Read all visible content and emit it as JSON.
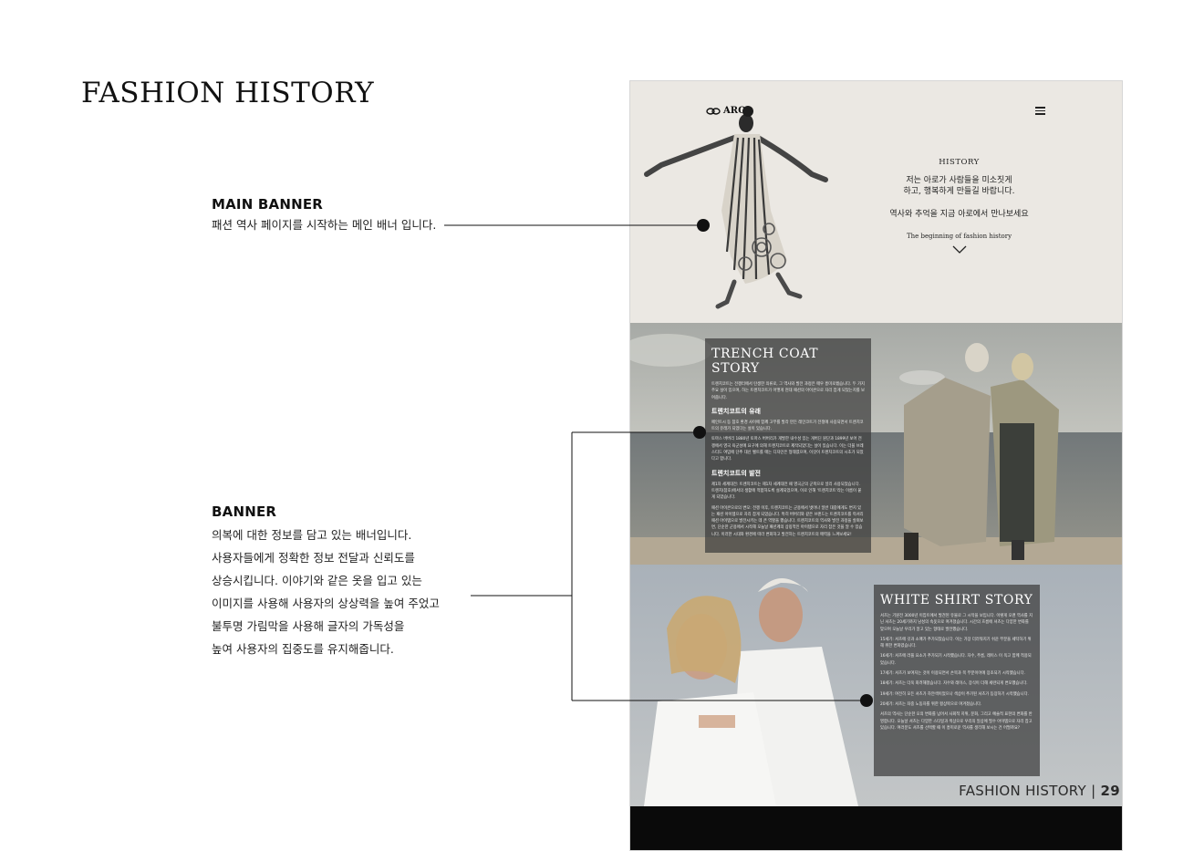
{
  "page": {
    "title": "FASHION HISTORY"
  },
  "annotations": {
    "main_banner": {
      "heading": "MAIN BANNER",
      "desc": "패션 역사 페이지를 시작하는 메인 배너 입니다."
    },
    "banner": {
      "heading": "BANNER",
      "lines": [
        "의복에 대한 정보를 담고 있는 배너입니다.",
        "사용자들에게 정확한 정보 전달과 신뢰도를",
        "상승시킵니다. 이야기와 같은 옷을 입고 있는",
        "이미지를 사용해 사용자의 상상력을 높여 주었고",
        "불투명 가림막을 사용해 글자의 가독성을",
        "높여 사용자의 집중도를 유지해줍니다."
      ]
    }
  },
  "mockup": {
    "logo": "ARO",
    "hero": {
      "label": "HISTORY",
      "line1": "저는 아로가 사람들을 미소짓게",
      "line2": "하고, 행복하게 만들길 바랍니다.",
      "sub": "역사와 추억을 지금 아로에서 만나보세요",
      "small": "The beginning of fashion history"
    },
    "trench": {
      "title": "TRENCH COAT STORY",
      "intro": "트렌치코트는 전쟁터에서 탄생한 의류로, 그 역사와 발전 과정은 매우 흥미로웠습니다. 두 가지 주요 설이 있으며, 하는 트렌치코트가 어떻게 현대 패션의 아이콘으로 자리 잡게 되었는지를 보여줍니다.",
      "sub1": "트렌치코트의 유래",
      "p1": "페인트시 등 참호 환경 사이에 함께 고무를 발라 만든 레인코트가 전쟁에 사용되면서 트렌치코트의 유래가 되었다는 설이 있습니다.",
      "p2": "토마스 버버리 1880년 토마스 버버리가 개발한 내수성 있는 개버딘 원단과 1899년 보어 전쟁에서 영국 육군성에 요구에 의해 트렌치코트로 제작되었다는 설이 있습니다. 이는 더블 브레스티드 여밈에 단추 대신 벨트를 매는 디자인은 형태였으며, 이것이 트렌치코트의 시초가 되었다고 합니다.",
      "sub2": "트렌치코트의 발전",
      "p3": "제1차 세계대전: 트렌치코트는 제1차 세계대전 때 영국군의 군복으로 널리 사용되었습니다. 트렌치(참호)에서의 생활에 적합하도록 설계되었으며, 이로 인해 '트렌치코트'라는 이름이 붙게 되었습니다.",
      "p4": "패션 아이콘으로의 변모: 전쟁 이후, 트렌치코트는 군용에서 벗어나 일반 대중에게도 변지 있는 패션 아이템으로 자리 잡게 되었습니다. 특히 버버리와 같은 브랜드는 트렌치코트를 럭셔리 패션 아이템으로 발전시키는 데 큰 역할을 했습니다. 트렌치코트의 역사와 발전 과정을 살펴보면, 단순한 군용에서 시작해 오늘날 패션계의 상징적인 아이템으로 자리 잡은 것을 알 수 있습니다. 이러한 시대와 환경에 따라 변화하고 발전하는 트렌치코트의 매력을 느껴보세요!"
    },
    "shirt": {
      "title": "WHITE SHIRT STORY",
      "p1": "셔츠는 기원전 3000년 이집트에서 발견된 유물로 그 시작을 보입니다. 이렇게 오랜 역사를 지닌 셔츠는 20세기까지 남성의 속옷으로 여겨졌습니다. 시간의 흐름에 셔츠는 다양한 변화를 맞으며 오늘날 우리가 알고 있는 형태로 발전했습니다.",
      "p2": "15세기: 셔츠에 깃과 소매가 추가되었습니다. 이는 가장 더러워지기 쉬운 부분을 세탁하기 위해 위한 변화였습니다.",
      "p3": "16세기: 셔츠에 러플 요소가 추가되기 시작했습니다. 자수, 주름, 레이스 이 옥고 함께 적용되었습니다.",
      "p4": "17세기: 셔츠가 보여지는 것이 이용되면서 손목과 목 부분이어에 장조되기 시작했습니다.",
      "p5": "18세기: 셔츠는 더욱 화려해졌습니다. 자수와 레이스, 장식이 더해 세련되게 변모했습니다.",
      "p6": "19세기: 여전히 모든 셔츠가 하얀색이었으나 색상이 추가된 셔츠가 등장하기 시작했습니다.",
      "p7": "20세기: 셔츠는 좌중 노동자를 위한 평상복으로 여겨졌습니다.",
      "p8": "셔츠의 역사는 단순한 오의 변화를 넘어서 사회적 지위, 문화, 그리고 예술적 표현의 변화를 반영합니다. 오늘날 셔츠는 다양한 스타일과 색상으로 우리의 일상에 필수 아이템으로 자리 잡고 있습니다. 여러분도 셔츠를 선택할 때 이 흥미로운 역사를 생각해 보시는 건 어떨까요?"
    },
    "footer": {
      "label": "FASHION HISTORY | ",
      "page": "29"
    }
  },
  "colors": {
    "hero_bg": "#ebe8e3",
    "card_overlay": "rgba(60,60,60,0.72)",
    "bottom_bar": "#0a0a0a"
  }
}
